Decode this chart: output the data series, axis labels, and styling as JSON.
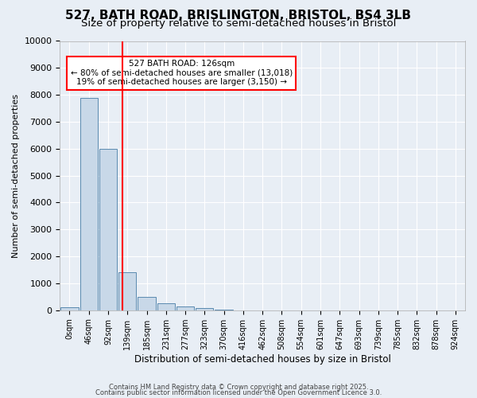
{
  "title": "527, BATH ROAD, BRISLINGTON, BRISTOL, BS4 3LB",
  "subtitle": "Size of property relative to semi-detached houses in Bristol",
  "xlabel": "Distribution of semi-detached houses by size in Bristol",
  "ylabel": "Number of semi-detached properties",
  "bin_labels": [
    "0sqm",
    "46sqm",
    "92sqm",
    "139sqm",
    "185sqm",
    "231sqm",
    "277sqm",
    "323sqm",
    "370sqm",
    "416sqm",
    "462sqm",
    "508sqm",
    "554sqm",
    "601sqm",
    "647sqm",
    "693sqm",
    "739sqm",
    "785sqm",
    "832sqm",
    "878sqm",
    "924sqm"
  ],
  "bar_values": [
    100,
    7900,
    6000,
    1400,
    500,
    250,
    150,
    80,
    30,
    5,
    3,
    2,
    1,
    0,
    0,
    0,
    0,
    0,
    0,
    0,
    0
  ],
  "bar_color": "#c8d8e8",
  "bar_edge_color": "#5a8ab0",
  "annotation_title": "527 BATH ROAD: 126sqm",
  "annotation_line1": "← 80% of semi-detached houses are smaller (13,018)",
  "annotation_line2": "19% of semi-detached houses are larger (3,150) →",
  "ylim": [
    0,
    10000
  ],
  "yticks": [
    0,
    1000,
    2000,
    3000,
    4000,
    5000,
    6000,
    7000,
    8000,
    9000,
    10000
  ],
  "footer1": "Contains HM Land Registry data © Crown copyright and database right 2025.",
  "footer2": "Contains public sector information licensed under the Open Government Licence 3.0.",
  "bg_color": "#e8eef5",
  "plot_bg_color": "#e8eef5",
  "title_fontsize": 11,
  "subtitle_fontsize": 9.5
}
